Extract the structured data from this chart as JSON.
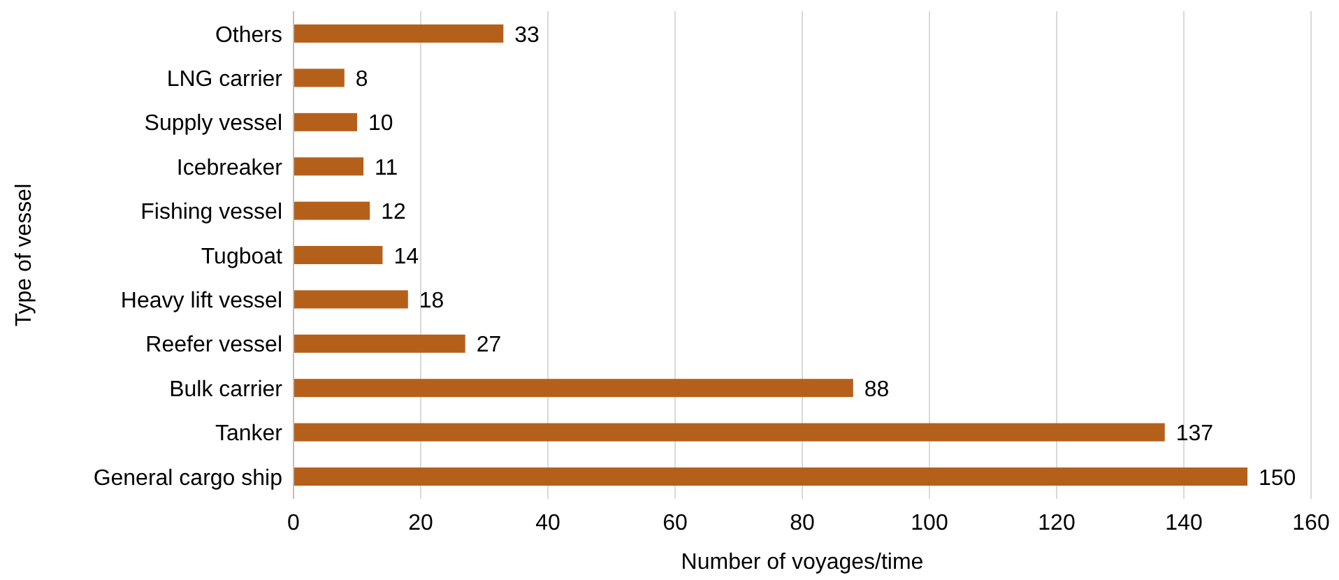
{
  "chart_data": {
    "type": "bar",
    "orientation": "horizontal",
    "xlabel": "Number of voyages/time",
    "ylabel": "Type of vessel",
    "categories": [
      "Others",
      "LNG carrier",
      "Supply vessel",
      "Icebreaker",
      "Fishing vessel",
      "Tugboat",
      "Heavy lift vessel",
      "Reefer vessel",
      "Bulk carrier",
      "Tanker",
      "General cargo ship"
    ],
    "values": [
      33,
      8,
      10,
      11,
      12,
      14,
      18,
      27,
      88,
      137,
      150
    ],
    "color": "#b5601a",
    "xlim": [
      0,
      160
    ],
    "xticks": [
      0,
      20,
      40,
      60,
      80,
      100,
      120,
      140,
      160
    ],
    "grid": "x",
    "data_labels": true
  }
}
